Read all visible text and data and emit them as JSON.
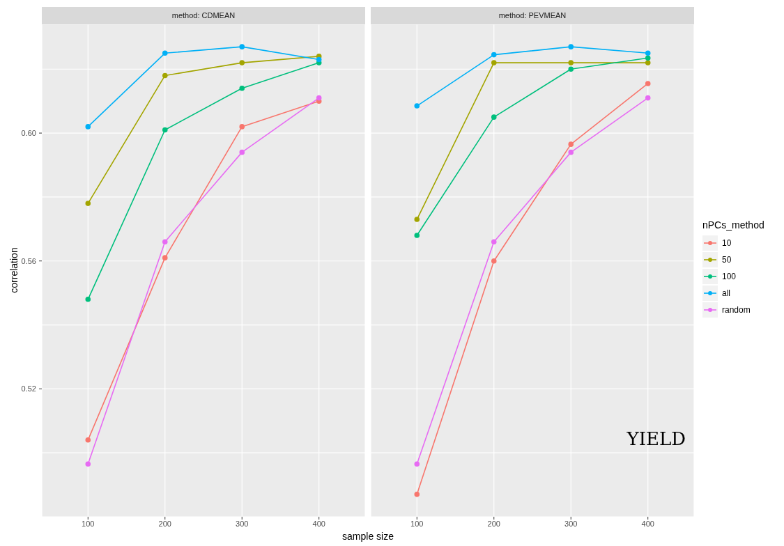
{
  "chart_data": [
    {
      "type": "line",
      "title": "method: CDMEAN",
      "xlabel": "sample size",
      "ylabel": "correlation",
      "x": [
        100,
        200,
        300,
        400
      ],
      "xlim": [
        40,
        460
      ],
      "xticks": [
        100,
        200,
        300,
        400
      ],
      "ylim": [
        0.48,
        0.634
      ],
      "yticks": [
        {
          "value": 0.5,
          "label": null
        },
        {
          "value": 0.52,
          "label": "0.52"
        },
        {
          "value": 0.54,
          "label": null
        },
        {
          "value": 0.56,
          "label": "0.56"
        },
        {
          "value": 0.58,
          "label": null
        },
        {
          "value": 0.6,
          "label": "0.60"
        },
        {
          "value": 0.62,
          "label": null
        }
      ],
      "grid": true,
      "marker": "circle",
      "line_style": "solid",
      "legend": false,
      "series": [
        {
          "color": "#f8766d",
          "values": [
            0.504,
            0.561,
            0.602,
            0.61
          ]
        },
        {
          "color": "#a3a500",
          "values": [
            0.578,
            0.618,
            0.622,
            0.624
          ]
        },
        {
          "color": "#00bf7d",
          "values": [
            0.548,
            0.601,
            0.614,
            0.622
          ]
        },
        {
          "color": "#00b0f6",
          "values": [
            0.602,
            0.625,
            0.627,
            0.623
          ]
        },
        {
          "color": "#e76bf3",
          "values": [
            0.4965,
            0.566,
            0.594,
            0.611
          ]
        }
      ]
    },
    {
      "type": "line",
      "title": "method: PEVMEAN",
      "x": [
        100,
        200,
        300,
        400
      ],
      "xlim": [
        40,
        460
      ],
      "xticks": [
        100,
        200,
        300,
        400
      ],
      "ylim": [
        0.48,
        0.634
      ],
      "yticks": [
        0.5,
        0.52,
        0.54,
        0.56,
        0.58,
        0.6,
        0.62
      ],
      "tick_labels": "x",
      "grid": true,
      "marker": "circle",
      "line_style": "solid",
      "legend": "right",
      "legend_title": "nPCs_method",
      "annotations": [
        "YIELD"
      ],
      "series": [
        {
          "name": "10",
          "color": "#f8766d",
          "values": [
            0.487,
            0.56,
            0.5965,
            0.6155
          ]
        },
        {
          "name": "50",
          "color": "#a3a500",
          "values": [
            0.573,
            0.622,
            0.622,
            0.622
          ]
        },
        {
          "name": "100",
          "color": "#00bf7d",
          "values": [
            0.568,
            0.605,
            0.62,
            0.6235
          ]
        },
        {
          "name": "all",
          "color": "#00b0f6",
          "values": [
            0.6085,
            0.6245,
            0.627,
            0.625
          ]
        },
        {
          "name": "random",
          "color": "#e76bf3",
          "values": [
            0.4965,
            0.566,
            0.594,
            0.611
          ]
        }
      ]
    }
  ]
}
